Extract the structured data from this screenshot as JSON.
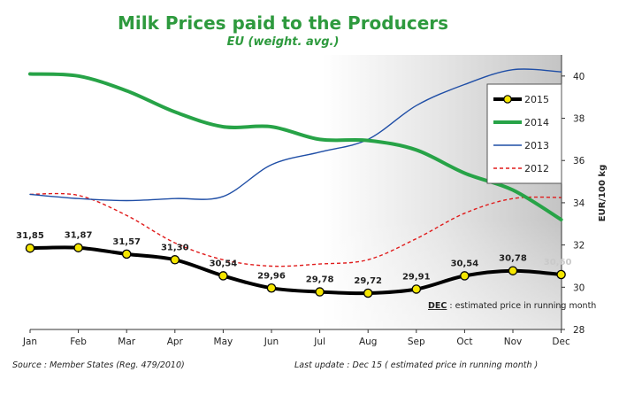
{
  "chart_data": {
    "type": "line",
    "title": "Milk Prices paid to the Producers",
    "subtitle": "EU (weight. avg.)",
    "ylabel": "EUR/100 kg",
    "ylim": [
      28,
      41
    ],
    "yticks": [
      28,
      30,
      32,
      34,
      36,
      38,
      40
    ],
    "categories": [
      "Jan",
      "Feb",
      "Mar",
      "Apr",
      "May",
      "Jun",
      "Jul",
      "Aug",
      "Sep",
      "Oct",
      "Nov",
      "Dec"
    ],
    "series": [
      {
        "name": "2015",
        "color": "#000000",
        "marker_color": "#f5e600",
        "values": [
          31.85,
          31.87,
          31.57,
          31.3,
          30.54,
          29.96,
          29.78,
          29.72,
          29.91,
          30.54,
          30.78,
          30.6
        ],
        "labels": [
          "31,85",
          "31,87",
          "31,57",
          "31,30",
          "30,54",
          "29,96",
          "29,78",
          "29,72",
          "29,91",
          "30,54",
          "30,78",
          "30,60"
        ]
      },
      {
        "name": "2014",
        "color": "#27a347",
        "values": [
          40.1,
          40.0,
          39.3,
          38.3,
          37.6,
          37.6,
          37.0,
          36.95,
          36.5,
          35.4,
          34.6,
          33.2
        ]
      },
      {
        "name": "2013",
        "color": "#1f4ea6",
        "values": [
          34.4,
          34.2,
          34.1,
          34.2,
          34.3,
          35.8,
          36.4,
          37.0,
          38.6,
          39.6,
          40.3,
          40.2
        ]
      },
      {
        "name": "2012",
        "color": "#e01b1b",
        "dashed": true,
        "values": [
          34.4,
          34.35,
          33.4,
          32.1,
          31.3,
          31.0,
          31.1,
          31.3,
          32.3,
          33.5,
          34.2,
          34.25
        ]
      }
    ],
    "grid": false,
    "legend_position": "right",
    "annotation": {
      "bold": "DEC",
      "text": ": estimated price in running month"
    }
  },
  "footer": {
    "source": "Source : Member States (Reg. 479/2010)",
    "update": "Last update : Dec 15  ( estimated price in running month )"
  }
}
